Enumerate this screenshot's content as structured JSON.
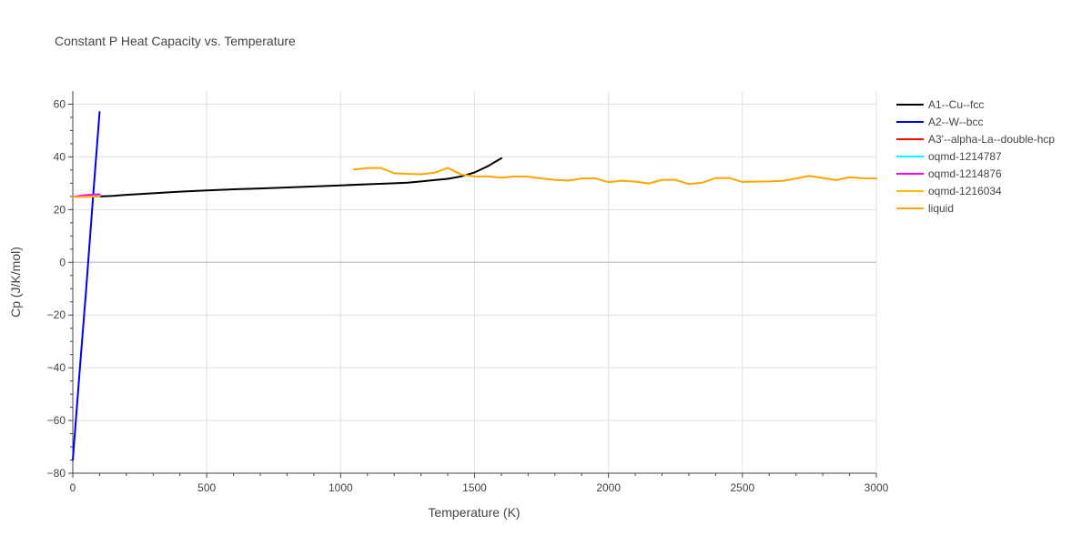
{
  "chart_data": {
    "type": "line",
    "title": "Constant P Heat Capacity vs. Temperature",
    "xlabel": "Temperature (K)",
    "ylabel": "Cp (J/K/mol)",
    "xlim": [
      0,
      3000
    ],
    "ylim": [
      -80,
      65
    ],
    "xticks": [
      0,
      500,
      1000,
      1500,
      2000,
      2500,
      3000
    ],
    "yticks": [
      -80,
      -60,
      -40,
      -20,
      0,
      20,
      40,
      60
    ],
    "xtick_labels": [
      "0",
      "500",
      "1000",
      "1500",
      "2000",
      "2500",
      "3000"
    ],
    "ytick_labels": [
      "−80",
      "−60",
      "−40",
      "−20",
      "0",
      "20",
      "40",
      "60"
    ],
    "grid": true,
    "legend_position": "right",
    "series": [
      {
        "name": "A1--Cu--fcc",
        "color": "#000000",
        "x": [
          0,
          50,
          100,
          150,
          200,
          300,
          400,
          500,
          600,
          700,
          800,
          900,
          1000,
          1100,
          1200,
          1250,
          1300,
          1350,
          1400,
          1450,
          1500,
          1550,
          1600
        ],
        "y": [
          24.8,
          24.9,
          25.0,
          25.2,
          25.6,
          26.2,
          26.8,
          27.3,
          27.7,
          28.0,
          28.4,
          28.8,
          29.2,
          29.6,
          30.0,
          30.2,
          30.7,
          31.2,
          31.7,
          32.6,
          34.1,
          36.5,
          39.5
        ]
      },
      {
        "name": "A2--W--bcc",
        "color": "#0000ee",
        "x": [
          0,
          25,
          50,
          75,
          100
        ],
        "y": [
          -75,
          -42,
          -10,
          24,
          57
        ]
      },
      {
        "name": "A3'--alpha-La--double-hcp",
        "color": "#ff0000",
        "x": [
          0,
          25,
          50,
          75,
          100
        ],
        "y": [
          24.8,
          24.9,
          25.0,
          25.1,
          25.2
        ]
      },
      {
        "name": "oqmd-1214787",
        "color": "#00ffff",
        "x": [
          0,
          25,
          50,
          75,
          100
        ],
        "y": [
          24.8,
          24.9,
          25.0,
          25.1,
          25.2
        ]
      },
      {
        "name": "oqmd-1214876",
        "color": "#ff00ff",
        "x": [
          0,
          25,
          50,
          75,
          100
        ],
        "y": [
          24.8,
          25.2,
          25.5,
          25.7,
          25.8
        ]
      },
      {
        "name": "oqmd-1216034",
        "color": "#ffbb00",
        "x": [
          0,
          25,
          50,
          75,
          100
        ],
        "y": [
          24.8,
          24.8,
          24.9,
          25.0,
          25.0
        ]
      },
      {
        "name": "liquid",
        "color": "#ffa500",
        "x": [
          1050,
          1100,
          1150,
          1200,
          1250,
          1300,
          1350,
          1400,
          1450,
          1500,
          1550,
          1600,
          1650,
          1700,
          1750,
          1800,
          1850,
          1900,
          1950,
          2000,
          2050,
          2100,
          2150,
          2200,
          2250,
          2300,
          2350,
          2400,
          2450,
          2500,
          2550,
          2600,
          2650,
          2700,
          2750,
          2800,
          2850,
          2900,
          2950,
          3000
        ],
        "y": [
          35.2,
          35.8,
          35.8,
          33.8,
          33.6,
          33.4,
          34.0,
          35.8,
          33.3,
          32.6,
          32.6,
          32.1,
          32.6,
          32.5,
          31.8,
          31.3,
          31.0,
          31.8,
          31.9,
          30.4,
          31.0,
          30.6,
          29.9,
          31.3,
          31.3,
          29.7,
          30.2,
          32.0,
          32.0,
          30.5,
          30.6,
          30.7,
          30.9,
          31.8,
          32.8,
          32.0,
          31.2,
          32.3,
          31.9,
          31.8
        ]
      }
    ]
  }
}
